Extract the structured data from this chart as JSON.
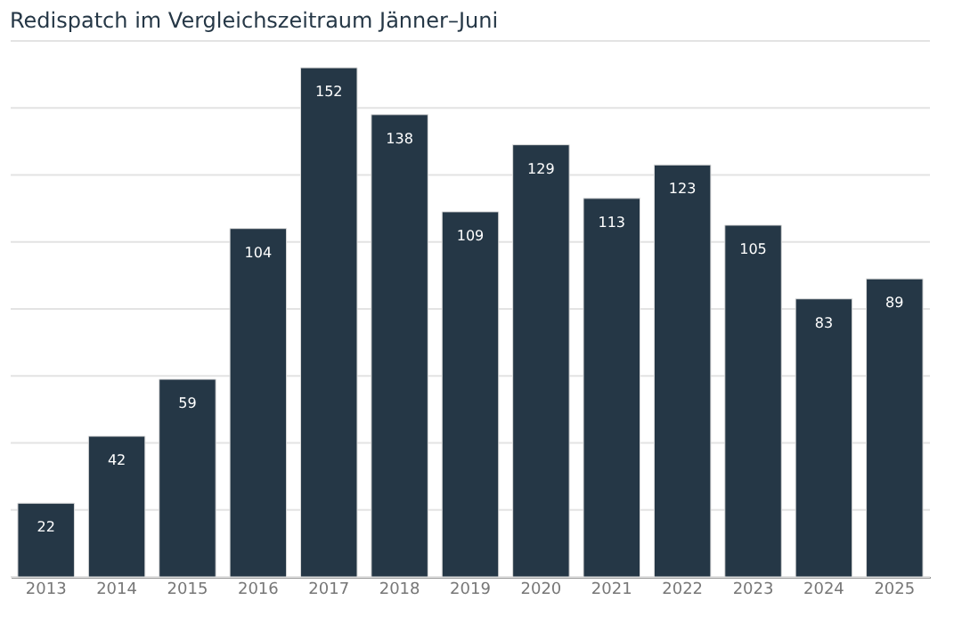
{
  "chart_data": {
    "type": "bar",
    "title": "Redispatch im Vergleichszeitraum Jänner–Juni",
    "categories": [
      "2013",
      "2014",
      "2015",
      "2016",
      "2017",
      "2018",
      "2019",
      "2020",
      "2021",
      "2022",
      "2023",
      "2024",
      "2025"
    ],
    "values": [
      22,
      42,
      59,
      104,
      152,
      138,
      109,
      129,
      113,
      123,
      105,
      83,
      89
    ],
    "color": "#253746",
    "ylim": [
      0,
      160
    ],
    "yticks": [
      {
        "value": 0,
        "label": null
      },
      {
        "value": 20,
        "label": null
      },
      {
        "value": 40,
        "label": null
      },
      {
        "value": 60,
        "label": null
      },
      {
        "value": 80,
        "label": null
      },
      {
        "value": 100,
        "label": null
      },
      {
        "value": 120,
        "label": null
      },
      {
        "value": 140,
        "label": null
      },
      {
        "value": 160,
        "label": null
      }
    ],
    "grid": "y",
    "tick_labels": "x",
    "data_labels": true
  }
}
